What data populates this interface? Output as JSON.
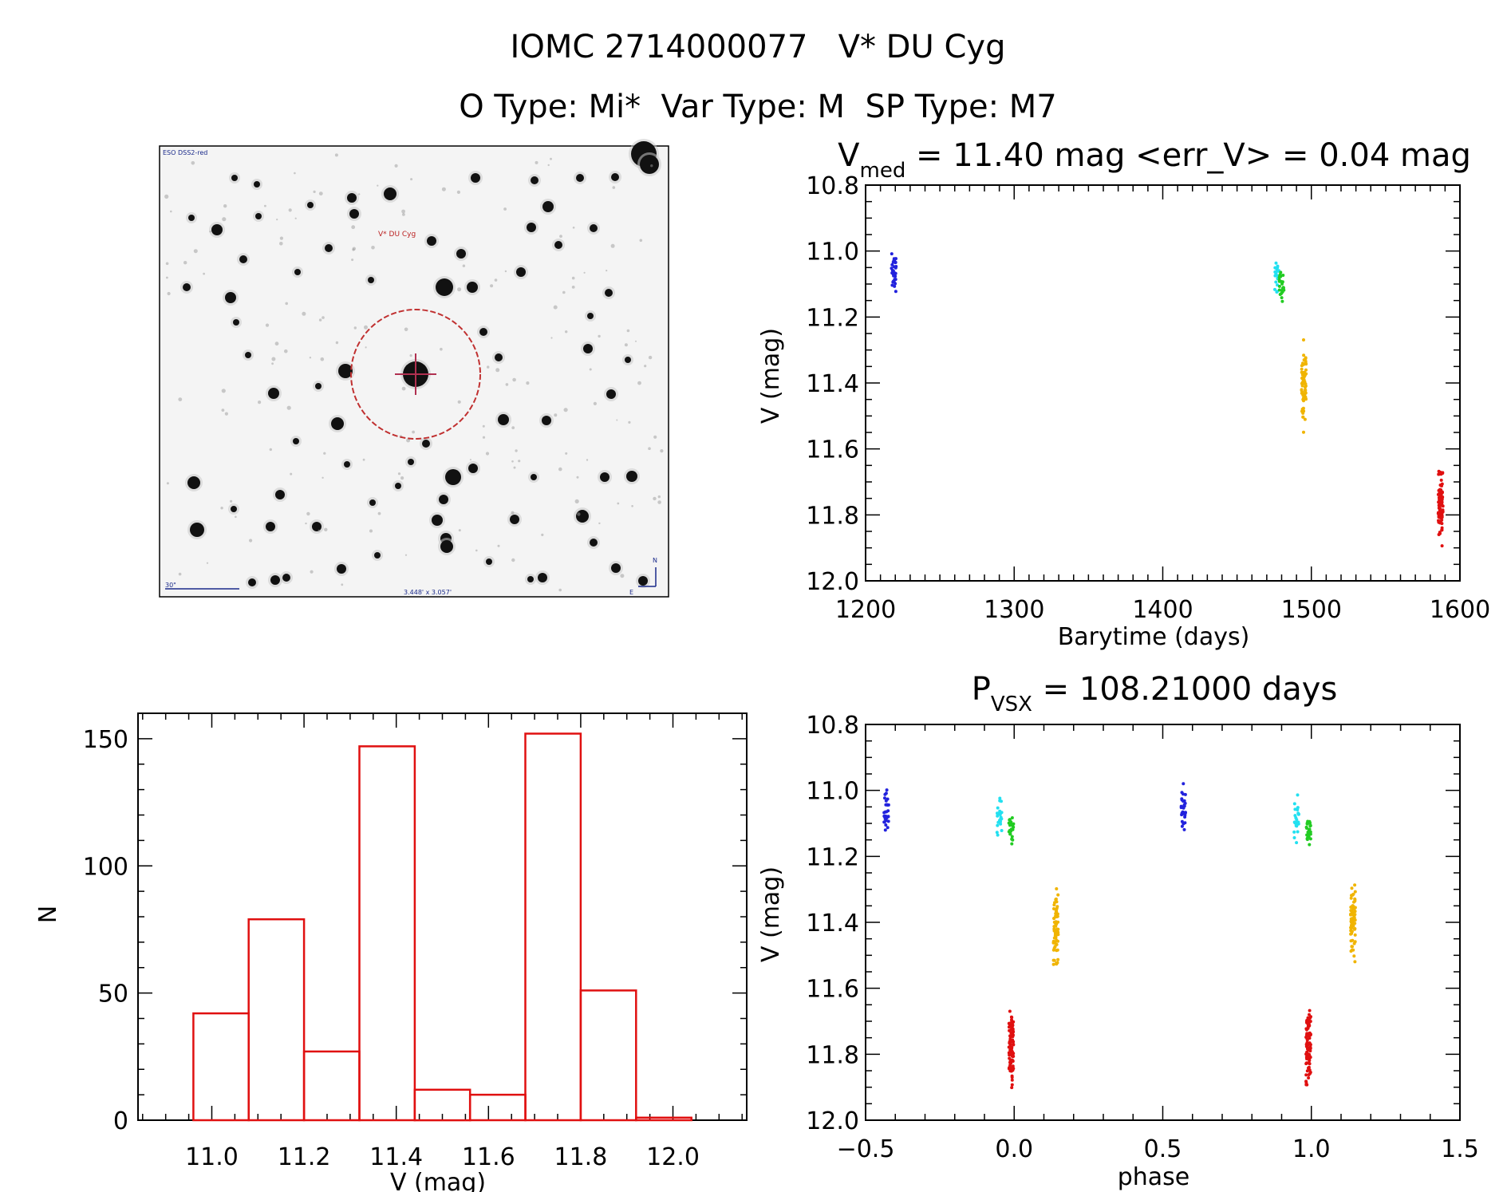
{
  "header": {
    "title": "IOMC 2714000077   V* DU Cyg",
    "subtitle": "O Type: Mi*  Var Type: M  SP Type: M7"
  },
  "finder": {
    "survey_label": "ESO DSS2-red",
    "target_label": "V* DU Cyg",
    "scale_label": "30\"",
    "fov_label": "3.448' x 3.057'",
    "north_label": "N",
    "east_label": "E"
  },
  "chart_data": [
    {
      "id": "light_curve",
      "type": "scatter",
      "title_main": "V",
      "title_sub": "med",
      "title_rest": " = 11.40 mag <err_V> = 0.04 mag",
      "xlabel": "Barytime (days)",
      "ylabel": "V (mag)",
      "xlim": [
        1200,
        1600
      ],
      "ylim": [
        12.0,
        10.8
      ],
      "y_inverted": true,
      "xticks": [
        1200,
        1300,
        1400,
        1500,
        1600
      ],
      "yticks": [
        10.8,
        11.0,
        11.2,
        11.4,
        11.6,
        11.8,
        12.0
      ],
      "series": [
        {
          "color": "#2222dd",
          "clusters": [
            {
              "x": 1219,
              "ymin": 10.96,
              "ymax": 11.16,
              "ycenter": 11.05,
              "n": 30
            }
          ]
        },
        {
          "color": "#22e0f0",
          "clusters": [
            {
              "x": 1477,
              "ymin": 11.0,
              "ymax": 11.15,
              "ycenter": 11.1,
              "n": 25
            }
          ]
        },
        {
          "color": "#22cc22",
          "clusters": [
            {
              "x": 1480,
              "ymin": 11.05,
              "ymax": 11.17,
              "ycenter": 11.11,
              "n": 25
            }
          ]
        },
        {
          "color": "#f0b400",
          "clusters": [
            {
              "x": 1495,
              "ymin": 11.24,
              "ymax": 11.57,
              "ycenter": 11.37,
              "n": 70
            }
          ]
        },
        {
          "color": "#e01010",
          "clusters": [
            {
              "x": 1587,
              "ymin": 11.63,
              "ymax": 11.92,
              "ycenter": 11.77,
              "n": 90
            }
          ]
        }
      ]
    },
    {
      "id": "phased_curve",
      "type": "scatter",
      "title_main": "P",
      "title_sub": "VSX",
      "title_rest": " = 108.21000 days",
      "xlabel": "phase",
      "ylabel": "V (mag)",
      "xlim": [
        -0.5,
        1.5
      ],
      "ylim": [
        12.0,
        10.8
      ],
      "y_inverted": true,
      "xticks": [
        -0.5,
        0.0,
        0.5,
        1.0,
        1.5
      ],
      "ytick_labels": [
        "10.8",
        "11.0",
        "11.2",
        "11.4",
        "11.6",
        "11.8",
        "12.0"
      ],
      "xtick_labels": [
        "−0.5",
        "0.0",
        "0.5",
        "1.0",
        "1.5"
      ],
      "series": [
        {
          "color": "#2222dd",
          "clusters": [
            {
              "x": -0.43,
              "ymin": 10.96,
              "ymax": 11.16,
              "ycenter": 11.05,
              "n": 30
            },
            {
              "x": 0.57,
              "ymin": 10.96,
              "ymax": 11.16,
              "ycenter": 11.05,
              "n": 30
            }
          ]
        },
        {
          "color": "#22e0f0",
          "clusters": [
            {
              "x": -0.05,
              "ymin": 11.0,
              "ymax": 11.17,
              "ycenter": 11.1,
              "n": 25
            },
            {
              "x": 0.95,
              "ymin": 11.0,
              "ymax": 11.17,
              "ycenter": 11.1,
              "n": 25
            }
          ]
        },
        {
          "color": "#22cc22",
          "clusters": [
            {
              "x": -0.01,
              "ymin": 11.05,
              "ymax": 11.18,
              "ycenter": 11.12,
              "n": 25
            },
            {
              "x": 0.99,
              "ymin": 11.05,
              "ymax": 11.18,
              "ycenter": 11.12,
              "n": 25
            }
          ]
        },
        {
          "color": "#f0b400",
          "clusters": [
            {
              "x": 0.14,
              "ymin": 11.24,
              "ymax": 11.57,
              "ycenter": 11.37,
              "n": 70
            },
            {
              "x": 1.14,
              "ymin": 11.24,
              "ymax": 11.57,
              "ycenter": 11.37,
              "n": 70
            }
          ]
        },
        {
          "color": "#e01010",
          "clusters": [
            {
              "x": -0.01,
              "ymin": 11.63,
              "ymax": 11.92,
              "ycenter": 11.77,
              "n": 90
            },
            {
              "x": 0.99,
              "ymin": 11.63,
              "ymax": 11.92,
              "ycenter": 11.77,
              "n": 90
            }
          ]
        }
      ]
    },
    {
      "id": "histogram",
      "type": "bar",
      "xlabel": "V (mag)",
      "ylabel": "N",
      "xlim": [
        10.84,
        12.16
      ],
      "ylim": [
        0,
        160
      ],
      "xticks": [
        11.0,
        11.2,
        11.4,
        11.6,
        11.8,
        12.0
      ],
      "yticks": [
        0,
        50,
        100,
        150
      ],
      "bar_color": "#e01010",
      "bins": [
        {
          "x0": 10.96,
          "x1": 11.08,
          "value": 42
        },
        {
          "x0": 11.08,
          "x1": 11.2,
          "value": 79
        },
        {
          "x0": 11.2,
          "x1": 11.32,
          "value": 27
        },
        {
          "x0": 11.32,
          "x1": 11.44,
          "value": 147
        },
        {
          "x0": 11.44,
          "x1": 11.56,
          "value": 12
        },
        {
          "x0": 11.56,
          "x1": 11.68,
          "value": 10
        },
        {
          "x0": 11.68,
          "x1": 11.8,
          "value": 152
        },
        {
          "x0": 11.8,
          "x1": 11.92,
          "value": 51
        },
        {
          "x0": 11.92,
          "x1": 12.04,
          "value": 1
        }
      ]
    }
  ]
}
